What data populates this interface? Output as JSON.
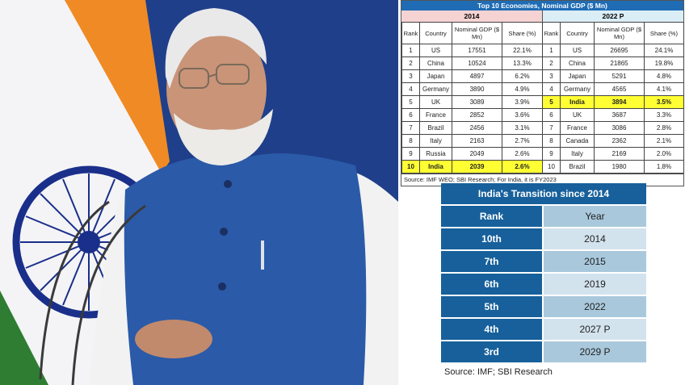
{
  "photo": {
    "description": "Speaker in blue Nehru jacket in front of Indian flag with microphones",
    "colors": {
      "background": "#1f3f8a",
      "saffron": "#f08a24",
      "flag_white": "#f4f4f6",
      "flag_green": "#2e7d32",
      "chakra": "#1a2f8a",
      "jacket": "#2b5aa8",
      "shirt": "#f2f2f2"
    }
  },
  "gdp_table": {
    "title": "Top 10 Economies, Nominal GDP ($ Mn)",
    "colors": {
      "title_bg": "#1f6cb5",
      "year_2014_bg": "#f6d3d3",
      "year_2022_bg": "#dbeef6",
      "highlight": "#ffff33"
    },
    "left": {
      "year": "2014",
      "headers": [
        "Rank",
        "Country",
        "Nominal GDP ($ Mn)",
        "Share (%)"
      ],
      "rows": [
        [
          "1",
          "US",
          "17551",
          "22.1%"
        ],
        [
          "2",
          "China",
          "10524",
          "13.3%"
        ],
        [
          "3",
          "Japan",
          "4897",
          "6.2%"
        ],
        [
          "4",
          "Germany",
          "3890",
          "4.9%"
        ],
        [
          "5",
          "UK",
          "3089",
          "3.9%"
        ],
        [
          "6",
          "France",
          "2852",
          "3.6%"
        ],
        [
          "7",
          "Brazil",
          "2456",
          "3.1%"
        ],
        [
          "8",
          "Italy",
          "2163",
          "2.7%"
        ],
        [
          "9",
          "Russia",
          "2049",
          "2.6%"
        ],
        [
          "10",
          "India",
          "2039",
          "2.6%"
        ]
      ],
      "highlight_row": 9
    },
    "right": {
      "year": "2022 P",
      "headers": [
        "Rank",
        "Country",
        "Nominal GDP ($ Mn)",
        "Share (%)"
      ],
      "rows": [
        [
          "1",
          "US",
          "26695",
          "24.1%"
        ],
        [
          "2",
          "China",
          "21865",
          "19.8%"
        ],
        [
          "3",
          "Japan",
          "5291",
          "4.8%"
        ],
        [
          "4",
          "Germany",
          "4565",
          "4.1%"
        ],
        [
          "5",
          "India",
          "3894",
          "3.5%"
        ],
        [
          "6",
          "UK",
          "3687",
          "3.3%"
        ],
        [
          "7",
          "France",
          "3086",
          "2.8%"
        ],
        [
          "8",
          "Canada",
          "2362",
          "2.1%"
        ],
        [
          "9",
          "Italy",
          "2169",
          "2.0%"
        ],
        [
          "10",
          "Brazil",
          "1980",
          "1.8%"
        ]
      ],
      "highlight_row": 4
    },
    "source": "Source: IMF WEO; SBI Research; For India, it is FY2023"
  },
  "transition_table": {
    "title": "India's Transition since 2014",
    "headers": {
      "rank": "Rank",
      "year": "Year"
    },
    "rows": [
      {
        "rank": "10th",
        "year": "2014"
      },
      {
        "rank": "7th",
        "year": "2015"
      },
      {
        "rank": "6th",
        "year": "2019"
      },
      {
        "rank": "5th",
        "year": "2022"
      },
      {
        "rank": "4th",
        "year": "2027 P"
      },
      {
        "rank": "3rd",
        "year": "2029 P"
      }
    ],
    "colors": {
      "dark": "#17609b",
      "light1": "#a9c8dc",
      "light2": "#d3e3ed"
    },
    "source": "Source: IMF; SBI Research"
  }
}
